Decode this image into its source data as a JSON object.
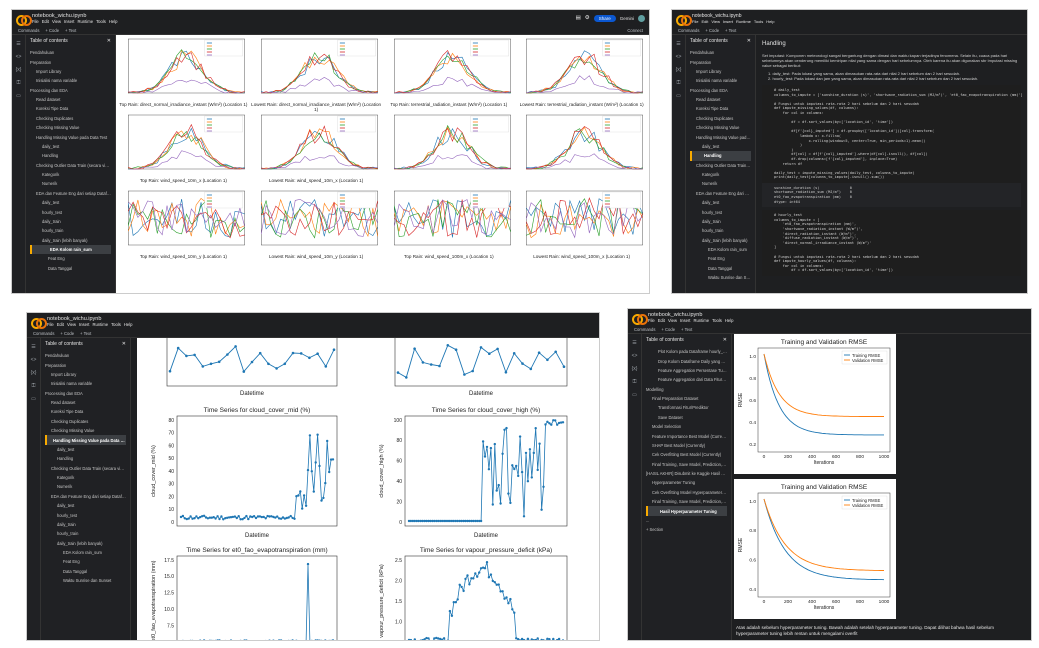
{
  "app": {
    "notebook_title": "notebook_wichu.ipynb",
    "menu": [
      "File",
      "Edit",
      "View",
      "Insert",
      "Runtime",
      "Tools",
      "Help"
    ],
    "commands": "Commands",
    "code_btn": "+ Code",
    "text_btn": "+ Text",
    "share": "Share",
    "gemini": "Gemini",
    "connect": "Connect",
    "toc_title": "Table of contents",
    "rail_icons": [
      "menu-icon",
      "code-brackets-icon",
      "variables-icon",
      "key-icon",
      "folder-icon"
    ]
  },
  "s1": {
    "toc": [
      {
        "t": "Pendahuluan",
        "lv": 1
      },
      {
        "t": "Preparation",
        "lv": 1
      },
      {
        "t": "Import Library",
        "lv": 2
      },
      {
        "t": "Inisialisi nama variable",
        "lv": 2
      },
      {
        "t": "Processing dan EDA",
        "lv": 1
      },
      {
        "t": "Read dataset",
        "lv": 2
      },
      {
        "t": "Koreksi Tipe Data",
        "lv": 2
      },
      {
        "t": "Checking Duplicates",
        "lv": 2
      },
      {
        "t": "Checking Missing Value",
        "lv": 2
      },
      {
        "t": "Handling Missing Value pada Data Test",
        "lv": 2
      },
      {
        "t": "daily_test",
        "lv": 3
      },
      {
        "t": "Handling",
        "lv": 3
      },
      {
        "t": "Checking Outlier Data Train (secara visual)",
        "lv": 2
      },
      {
        "t": "Kategorik",
        "lv": 3
      },
      {
        "t": "Numerik",
        "lv": 3
      },
      {
        "t": "EDA dan Feature Eng dari setiap Dataframe",
        "lv": 2
      },
      {
        "t": "daily_test",
        "lv": 3
      },
      {
        "t": "hourly_test",
        "lv": 3
      },
      {
        "t": "daily_train",
        "lv": 3
      },
      {
        "t": "hourly_train",
        "lv": 3
      },
      {
        "t": "daily_train (lebih banyak)",
        "lv": 3
      },
      {
        "t": "EDA Kolom rain_sum",
        "lv": 4,
        "hl": true
      },
      {
        "t": "Feat Eng",
        "lv": 4
      },
      {
        "t": "Data Tanggal",
        "lv": 4
      }
    ],
    "top_titles": [
      "Top Rain: direct_normal_irradiance_instant (W/m²) (Location 1)",
      "Lowest Rain: direct_normal_irradiance_instant (W/m²) (Location 1)",
      "Top Rain: terrestrial_radiation_instant (W/m²) (Location 1)",
      "Lowest Rain: terrestrial_radiation_instant (W/m²) (Location 1)"
    ],
    "mid_titles": [
      "Top Rain: wind_speed_10m_x (Location 1)",
      "Lowest Rain: wind_speed_10m_x (Location 1)",
      "",
      ""
    ],
    "bottom_titles": [
      "Top Rain: wind_speed_10m_y (Location 1)",
      "Lowest Rain: wind_speed_10m_y (Location 1)",
      "Top Rain: wind_speed_100m_x (Location 1)",
      "Lowest Rain: wind_speed_100m_x (Location 1)"
    ],
    "colors": [
      "#1f77b4",
      "#ff7f0e",
      "#2ca02c",
      "#d62728",
      "#9467bd"
    ]
  },
  "s2": {
    "heading": "Handling",
    "para": "Set imputasi: Komponen meteorologi sangat bergantung dengan dimasi dan waktu kapan terjadinya fenomena. Selain itu, cuaca pada hari sebelumnya akan cenderung memiliki kemiripan nilai yang sama dengan hari sebelumnya. Oleh karena itu akan digunakan sbr imputasi missing value sebagai berikut:",
    "bullets": [
      "1. daily_test: Pada lokasi yang sama, akan dimasukan rata-rata dari nilai 2 hari sebelum dan 2 hari sesudah.",
      "2. hourly_test: Pada lokasi dan jam yang sama, akan dimasukan rata-rata dari nilai 2 hari sebelum dan 2 hari sesudah."
    ],
    "code1": "# daily_test\ncolumns_to_impute = ['sunshine_duration (s)', 'shortwave_radiation_sum (MJ/m²)', 'et0_fao_evapotranspiration (mm)']\n\n# Fungsi untuk imputasi rata-rata 2 hari sebelum dan 2 hari sesudah\ndef impute_missing_values(df, columns):\n    for col in columns:\n\n        df = df.sort_values(by=['location_id', 'time'])\n\n        df[f'{col}_imputed'] = df.groupby(['location_id'])[col].transform(\n            lambda x: x.fillna(\n                x.rolling(window=5, center=True, min_periods=1).mean()\n            )\n        )\n        df[col] = df[f'{col}_imputed'].where(df[col].isnull(), df[col])\n        df.drop(columns=[f'{col}_imputed'], inplace=True)\n    return df\n\ndaily_test = impute_missing_values(daily_test, columns_to_impute)\nprint(daily_test[columns_to_impute].isnull().sum())",
    "output": "sunshine_duration (s)              0\nshortwave_radiation_sum (MJ/m²)    0\net0_fao_evapotranspiration (mm)    0\ndtype: int64",
    "code2": "# hourly_test\ncolumns_to_impute = [\n    'et0_fao_evapotranspiration (mm)',\n    'shortwave_radiation_instant (W/m²)',\n    'direct_radiation_instant (W/m²)',\n    'diffuse_radiation_instant (W/m²)',\n    'direct_normal_irradiance_instant (W/m²)'\n]\n\n# Fungsi untuk imputasi rata-rata 2 hari sebelum dan 2 hari sesudah\ndef impute_hourly_values(df, columns):\n    for col in columns:\n        df = df.sort_values(by=['location_id', 'time'])",
    "toc": [
      {
        "t": "Pendahuluan",
        "lv": 1
      },
      {
        "t": "Preparation",
        "lv": 1
      },
      {
        "t": "Import Library",
        "lv": 2
      },
      {
        "t": "Inisialisi nama variable",
        "lv": 2
      },
      {
        "t": "Processing dan EDA",
        "lv": 1
      },
      {
        "t": "Read dataset",
        "lv": 2
      },
      {
        "t": "Koreksi Tipe Data",
        "lv": 2
      },
      {
        "t": "Checking Duplicates",
        "lv": 2
      },
      {
        "t": "Checking Missing Value",
        "lv": 2
      },
      {
        "t": "Handling Missing Value pada Data Test",
        "lv": 2
      },
      {
        "t": "daily_test",
        "lv": 3
      },
      {
        "t": "Handling",
        "lv": 3,
        "hl": true
      },
      {
        "t": "Checking Outlier Data Train (secara visual)",
        "lv": 2
      },
      {
        "t": "Kategorik",
        "lv": 3
      },
      {
        "t": "Numerik",
        "lv": 3
      },
      {
        "t": "EDA dan Feature Eng dari setiap Dataframe",
        "lv": 2
      },
      {
        "t": "daily_test",
        "lv": 3
      },
      {
        "t": "hourly_test",
        "lv": 3
      },
      {
        "t": "daily_train",
        "lv": 3
      },
      {
        "t": "hourly_train",
        "lv": 3
      },
      {
        "t": "daily_train (lebih banyak)",
        "lv": 3
      },
      {
        "t": "EDA Kolom rain_sum",
        "lv": 4
      },
      {
        "t": "Feat Eng",
        "lv": 4
      },
      {
        "t": "Data Tanggal",
        "lv": 4
      },
      {
        "t": "Waktu Sunrise dan Sunset",
        "lv": 4
      }
    ]
  },
  "s3": {
    "toc": [
      {
        "t": "Pendahuluan",
        "lv": 1
      },
      {
        "t": "Preparation",
        "lv": 1
      },
      {
        "t": "Import Library",
        "lv": 2
      },
      {
        "t": "Inisialisi nama variable",
        "lv": 2
      },
      {
        "t": "Processing dan EDA",
        "lv": 1
      },
      {
        "t": "Read dataset",
        "lv": 2
      },
      {
        "t": "Koreksi Tipe Data",
        "lv": 2
      },
      {
        "t": "Checking Duplicates",
        "lv": 2
      },
      {
        "t": "Checking Missing Value",
        "lv": 2
      },
      {
        "t": "Handling Missing Value pada Data Test",
        "lv": 2,
        "hl": true
      },
      {
        "t": "daily_test",
        "lv": 3
      },
      {
        "t": "Handling",
        "lv": 3
      },
      {
        "t": "Checking Outlier Data Train (secara visual)",
        "lv": 2
      },
      {
        "t": "Kategorik",
        "lv": 3
      },
      {
        "t": "Numerik",
        "lv": 3
      },
      {
        "t": "EDA dan Feature Eng dari setiap Dataframe",
        "lv": 2
      },
      {
        "t": "daily_test",
        "lv": 3
      },
      {
        "t": "hourly_test",
        "lv": 3
      },
      {
        "t": "daily_train",
        "lv": 3
      },
      {
        "t": "hourly_train",
        "lv": 3
      },
      {
        "t": "daily_train (lebih banyak)",
        "lv": 3
      },
      {
        "t": "EDA Kolom rain_sum",
        "lv": 4
      },
      {
        "t": "Feat Eng",
        "lv": 4
      },
      {
        "t": "Data Tanggal",
        "lv": 4
      },
      {
        "t": "Waktu Sunrise dan Sunset",
        "lv": 4
      }
    ],
    "xlabel": "Datetime",
    "plots": [
      {
        "title": "Time Series for cloud_cover_mid (%)",
        "ylabel": "cloud_cover_mid (%)",
        "yticks": [
          "0",
          "10",
          "20",
          "30",
          "40",
          "50",
          "60",
          "70",
          "80"
        ]
      },
      {
        "title": "Time Series for cloud_cover_high (%)",
        "ylabel": "cloud_cover_high (%)",
        "yticks": [
          "0",
          "20",
          "40",
          "60",
          "80",
          "100"
        ]
      },
      {
        "title": "Time Series for et0_fao_evapotranspiration (mm)",
        "ylabel": "et0_fao_evapotranspiration (mm)",
        "yticks": [
          "5.0",
          "7.5",
          "10.0",
          "12.5",
          "15.0",
          "17.5"
        ]
      },
      {
        "title": "Time Series for vapour_pressure_deficit (kPa)",
        "ylabel": "vapour_pressure_deficit (kPa)",
        "yticks": [
          "0.5",
          "1.0",
          "1.5",
          "2.0",
          "2.5"
        ]
      }
    ]
  },
  "s4": {
    "toc": [
      {
        "t": "Plot Kolom pada Dataframe hourly_train",
        "lv": 3
      },
      {
        "t": "Drop Kolom Dataframe Daily yang Sesuai dengan Dataframe Hourly",
        "lv": 3
      },
      {
        "t": "Feature Aggregation Persentase Tutupan Awan > 75%",
        "lv": 3
      },
      {
        "t": "Feature Aggregation dari Data Fitur Per Jam",
        "lv": 3
      },
      {
        "t": "Modelling",
        "lv": 1
      },
      {
        "t": "Final Preparation Dataset",
        "lv": 2
      },
      {
        "t": "Transformasi Fitur/Prediktor",
        "lv": 3
      },
      {
        "t": "Save Dataset",
        "lv": 3
      },
      {
        "t": "Model Selection",
        "lv": 2
      },
      {
        "t": "Feature Importance Best Model (Currently)",
        "lv": 2
      },
      {
        "t": "SHAP Best Model (Currently)",
        "lv": 2
      },
      {
        "t": "Cek Overfitting Best Model (Currently)",
        "lv": 2
      },
      {
        "t": "Final Training, Save Model, Prediction, Postprocessing, and Submission",
        "lv": 2
      },
      {
        "t": "[HASIL AKHIR] Disubmit ke Kaggle Hasil Hyperparameter Tuning",
        "lv": 1
      },
      {
        "t": "Hyperparameter Tuning",
        "lv": 2
      },
      {
        "t": "Cek Overfitting Model Hyperparameter Tuning",
        "lv": 2
      },
      {
        "t": "Final Training, Save Model, Prediction, Postprocessing, and Submission",
        "lv": 2
      },
      {
        "t": "Hasil Hyperparameter Tuning",
        "lv": 3,
        "hl": true
      },
      {
        "t": "...",
        "lv": 1
      },
      {
        "t": "+ Section",
        "lv": 1
      }
    ],
    "chart_title": "Training and Validation RMSE",
    "legend": [
      "Training RMSE",
      "Validation RMSE"
    ],
    "xlabel": "Iterations",
    "ylabel": "RMSE",
    "xticks": [
      "0",
      "200",
      "400",
      "600",
      "800",
      "1000"
    ],
    "yticks1": [
      "0.2",
      "0.4",
      "0.6",
      "0.8",
      "1.0"
    ],
    "yticks2": [
      "0.4",
      "0.6",
      "0.8",
      "1.0"
    ],
    "caption": "Atas adalah sebelum hyperparameter tuning. Bawah adalah setelah hyperparameter tuning. Dapat dilihat bahwa hasil sebelum hyperparameter tuning lebih rentan untuk mengalami overfit"
  }
}
